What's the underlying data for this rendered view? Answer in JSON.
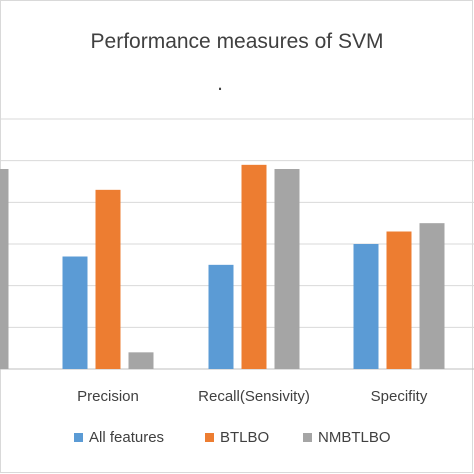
{
  "chart_data": {
    "type": "bar",
    "title": "Performance measures of SVM",
    "subtitle": ".",
    "categories": [
      "",
      "Precision",
      "Recall(Sensivity)",
      "Specifity"
    ],
    "series": [
      {
        "name": "All features",
        "color": "#5b9bd5",
        "values": [
          null,
          0.27,
          0.25,
          0.3
        ]
      },
      {
        "name": "BTLBO",
        "color": "#ed7d31",
        "values": [
          null,
          0.43,
          0.49,
          0.33
        ]
      },
      {
        "name": "NMBTLBO",
        "color": "#a5a5a5",
        "values": [
          0.48,
          0.04,
          0.48,
          0.35
        ]
      }
    ],
    "ylim": [
      0,
      0.6
    ],
    "grid": true,
    "legend_position": "bottom"
  }
}
